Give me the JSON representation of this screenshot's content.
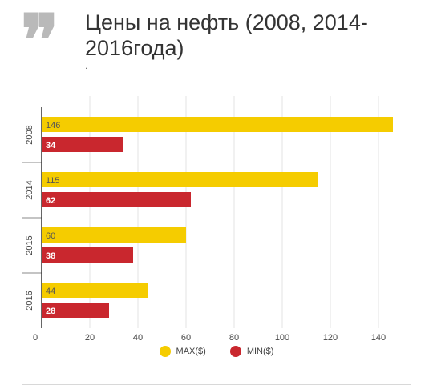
{
  "header": {
    "title": "Цены на нефть (2008, 2014-2016года)",
    "subtitle": "."
  },
  "colors": {
    "max": "#f5cc00",
    "min": "#c9272e",
    "grid": "#e3e3e3",
    "axis": "#333333",
    "quote": "#b9b9b9"
  },
  "quote_icon": "quote-icon",
  "chart_data": {
    "type": "bar",
    "orientation": "horizontal",
    "categories": [
      "2008",
      "2014",
      "2015",
      "2016"
    ],
    "series": [
      {
        "name": "MAX($)",
        "values": [
          146,
          115,
          60,
          44
        ]
      },
      {
        "name": "MIN($)",
        "values": [
          34,
          62,
          38,
          28
        ]
      }
    ],
    "xlim": [
      0,
      150
    ],
    "xticks": [
      0,
      20,
      40,
      60,
      80,
      100,
      120,
      140
    ],
    "grid": true,
    "legend": "bottom",
    "data_labels": true
  }
}
